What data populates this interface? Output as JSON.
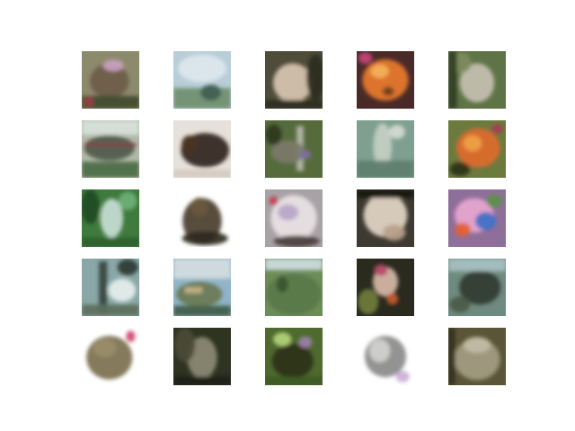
{
  "tiles": [
    {
      "bg": "#8c8a6c",
      "shapes": [
        [
          "ellipse",
          "#6c5b46",
          0.48,
          0.52,
          0.34,
          0.3
        ],
        [
          "ellipse",
          "#c9a3c0",
          0.55,
          0.25,
          0.18,
          0.1
        ],
        [
          "rect",
          "#3f4a2d",
          0.0,
          0.78,
          1.0,
          0.22
        ],
        [
          "ellipse",
          "#a33a45",
          0.12,
          0.88,
          0.08,
          0.08
        ]
      ]
    },
    {
      "bg": "#b8cdd8",
      "shapes": [
        [
          "ellipse",
          "#dde8ee",
          0.5,
          0.3,
          0.42,
          0.24
        ],
        [
          "rect",
          "#6f8f6e",
          0.0,
          0.64,
          1.0,
          0.36
        ],
        [
          "ellipse",
          "#3e5f50",
          0.65,
          0.72,
          0.18,
          0.14
        ]
      ]
    },
    {
      "bg": "#4f4c3a",
      "shapes": [
        [
          "ellipse",
          "#d8c6b0",
          0.48,
          0.55,
          0.34,
          0.34
        ],
        [
          "ellipse",
          "#2d2a20",
          0.88,
          0.45,
          0.16,
          0.4
        ],
        [
          "rect",
          "#2a2a1e",
          0.0,
          0.85,
          1.0,
          0.15
        ]
      ]
    },
    {
      "bg": "#4a2a28",
      "shapes": [
        [
          "ellipse",
          "#e87b2a",
          0.5,
          0.5,
          0.4,
          0.36
        ],
        [
          "ellipse",
          "#f3b25a",
          0.4,
          0.35,
          0.16,
          0.12
        ],
        [
          "ellipse",
          "#c8457a",
          0.15,
          0.12,
          0.12,
          0.1
        ],
        [
          "ellipse",
          "#6a3b1e",
          0.55,
          0.7,
          0.1,
          0.08
        ]
      ]
    },
    {
      "bg": "#5f7446",
      "shapes": [
        [
          "ellipse",
          "#c6c0b2",
          0.5,
          0.55,
          0.3,
          0.34
        ],
        [
          "ellipse",
          "#7d8c5b",
          0.2,
          0.2,
          0.2,
          0.18
        ],
        [
          "rect",
          "#2f3e24",
          0.0,
          0.0,
          0.15,
          1.0
        ]
      ]
    },
    {
      "bg": "#b3b9a8",
      "shapes": [
        [
          "ellipse",
          "#4f5a4a",
          0.48,
          0.48,
          0.44,
          0.22
        ],
        [
          "rect",
          "#8b3c45",
          0.05,
          0.4,
          0.9,
          0.05
        ],
        [
          "rect",
          "#d7e2da",
          0.0,
          0.0,
          1.0,
          0.25
        ],
        [
          "rect",
          "#4b6b45",
          0.0,
          0.72,
          1.0,
          0.28
        ]
      ]
    },
    {
      "bg": "#e6e1da",
      "shapes": [
        [
          "ellipse",
          "#2f241c",
          0.55,
          0.52,
          0.42,
          0.3
        ],
        [
          "ellipse",
          "#4a3324",
          0.28,
          0.42,
          0.14,
          0.16
        ],
        [
          "rect",
          "#d5cbc0",
          0.0,
          0.86,
          1.0,
          0.14
        ]
      ]
    },
    {
      "bg": "#566b3c",
      "shapes": [
        [
          "rect",
          "#b9b8ae",
          0.55,
          0.1,
          0.12,
          0.78
        ],
        [
          "ellipse",
          "#7c7a6a",
          0.4,
          0.55,
          0.3,
          0.2
        ],
        [
          "ellipse",
          "#2d3820",
          0.15,
          0.25,
          0.14,
          0.18
        ],
        [
          "ellipse",
          "#7e6fa0",
          0.7,
          0.6,
          0.1,
          0.08
        ]
      ]
    },
    {
      "bg": "#7fa090",
      "shapes": [
        [
          "ellipse",
          "#c7cfc4",
          0.45,
          0.45,
          0.16,
          0.4
        ],
        [
          "rect",
          "#5d7e6e",
          0.0,
          0.7,
          1.0,
          0.3
        ],
        [
          "ellipse",
          "#d6dccf",
          0.7,
          0.2,
          0.14,
          0.12
        ]
      ]
    },
    {
      "bg": "#6c7a3e",
      "shapes": [
        [
          "ellipse",
          "#e06a2c",
          0.52,
          0.48,
          0.38,
          0.34
        ],
        [
          "ellipse",
          "#f0a248",
          0.42,
          0.4,
          0.16,
          0.14
        ],
        [
          "ellipse",
          "#2c3119",
          0.2,
          0.85,
          0.18,
          0.12
        ],
        [
          "ellipse",
          "#a93a55",
          0.85,
          0.15,
          0.1,
          0.08
        ]
      ]
    },
    {
      "bg": "#3f7b3c",
      "shapes": [
        [
          "ellipse",
          "#c8ddd6",
          0.52,
          0.5,
          0.2,
          0.34
        ],
        [
          "ellipse",
          "#1f4b25",
          0.15,
          0.3,
          0.16,
          0.3
        ],
        [
          "ellipse",
          "#6fb07a",
          0.8,
          0.2,
          0.16,
          0.16
        ],
        [
          "rect",
          "#2b5e2a",
          0.0,
          0.84,
          1.0,
          0.16
        ]
      ]
    },
    {
      "bg": "#ffffff",
      "shapes": [
        [
          "ellipse",
          "#4a3e2b",
          0.5,
          0.55,
          0.34,
          0.4
        ],
        [
          "ellipse",
          "#6a5a3c",
          0.45,
          0.3,
          0.14,
          0.16
        ],
        [
          "ellipse",
          "#2f2a1f",
          0.55,
          0.85,
          0.4,
          0.12
        ]
      ]
    },
    {
      "bg": "#a8a2a6",
      "shapes": [
        [
          "ellipse",
          "#e9e3e5",
          0.5,
          0.5,
          0.4,
          0.4
        ],
        [
          "ellipse",
          "#b9a5c7",
          0.4,
          0.4,
          0.18,
          0.14
        ],
        [
          "ellipse",
          "#4a3e3a",
          0.55,
          0.9,
          0.4,
          0.1
        ],
        [
          "ellipse",
          "#c63e52",
          0.15,
          0.2,
          0.08,
          0.08
        ]
      ]
    },
    {
      "bg": "#3e3a31",
      "shapes": [
        [
          "ellipse",
          "#e3d6c6",
          0.5,
          0.45,
          0.38,
          0.38
        ],
        [
          "ellipse",
          "#b7a08a",
          0.65,
          0.75,
          0.2,
          0.14
        ],
        [
          "rect",
          "#18150f",
          0.0,
          0.0,
          1.0,
          0.15
        ]
      ]
    },
    {
      "bg": "#8e6f9a",
      "shapes": [
        [
          "ellipse",
          "#e8a6cf",
          0.45,
          0.45,
          0.34,
          0.3
        ],
        [
          "ellipse",
          "#3d6fc8",
          0.65,
          0.55,
          0.18,
          0.16
        ],
        [
          "ellipse",
          "#e5602f",
          0.25,
          0.7,
          0.14,
          0.12
        ],
        [
          "ellipse",
          "#5b8f4a",
          0.8,
          0.2,
          0.14,
          0.12
        ]
      ]
    },
    {
      "bg": "#8aa7a8",
      "shapes": [
        [
          "rect",
          "#33433b",
          0.3,
          0.05,
          0.14,
          0.9
        ],
        [
          "ellipse",
          "#e6efee",
          0.7,
          0.55,
          0.24,
          0.2
        ],
        [
          "ellipse",
          "#2b3a2f",
          0.8,
          0.15,
          0.18,
          0.14
        ],
        [
          "rect",
          "#5b6f5b",
          0.0,
          0.8,
          1.0,
          0.2
        ]
      ]
    },
    {
      "bg": "#90b4c8",
      "shapes": [
        [
          "rect",
          "#d5dde1",
          0.0,
          0.0,
          1.0,
          0.35
        ],
        [
          "ellipse",
          "#6a7a55",
          0.45,
          0.62,
          0.4,
          0.22
        ],
        [
          "rect",
          "#c9b48a",
          0.2,
          0.5,
          0.3,
          0.1
        ],
        [
          "rect",
          "#3f5c44",
          0.0,
          0.82,
          1.0,
          0.18
        ]
      ]
    },
    {
      "bg": "#6c8d58",
      "shapes": [
        [
          "rect",
          "#cfdde3",
          0.0,
          0.0,
          1.0,
          0.2
        ],
        [
          "ellipse",
          "#587a48",
          0.5,
          0.62,
          0.48,
          0.36
        ],
        [
          "ellipse",
          "#3a5530",
          0.3,
          0.45,
          0.1,
          0.14
        ]
      ]
    },
    {
      "bg": "#2a2a1e",
      "shapes": [
        [
          "ellipse",
          "#d8b9a6",
          0.5,
          0.4,
          0.22,
          0.26
        ],
        [
          "ellipse",
          "#b5466a",
          0.42,
          0.2,
          0.12,
          0.1
        ],
        [
          "ellipse",
          "#6f7d3a",
          0.2,
          0.75,
          0.18,
          0.22
        ],
        [
          "ellipse",
          "#c95a2a",
          0.62,
          0.7,
          0.1,
          0.1
        ]
      ]
    },
    {
      "bg": "#6f8a80",
      "shapes": [
        [
          "ellipse",
          "#2f3a31",
          0.55,
          0.5,
          0.36,
          0.3
        ],
        [
          "rect",
          "#a7c0c2",
          0.0,
          0.0,
          1.0,
          0.22
        ],
        [
          "ellipse",
          "#4a5a48",
          0.2,
          0.8,
          0.18,
          0.14
        ]
      ]
    },
    {
      "bg": "#ffffff",
      "shapes": [
        [
          "ellipse",
          "#7b6f4f",
          0.48,
          0.52,
          0.4,
          0.38
        ],
        [
          "ellipse",
          "#9a8e6a",
          0.4,
          0.35,
          0.2,
          0.16
        ],
        [
          "ellipse",
          "#d34a6f",
          0.85,
          0.15,
          0.08,
          0.1
        ]
      ]
    },
    {
      "bg": "#2e3322",
      "shapes": [
        [
          "ellipse",
          "#8c8a74",
          0.5,
          0.52,
          0.26,
          0.36
        ],
        [
          "ellipse",
          "#4a4a36",
          0.2,
          0.3,
          0.18,
          0.3
        ],
        [
          "rect",
          "#1c2015",
          0.0,
          0.85,
          1.0,
          0.15
        ]
      ]
    },
    {
      "bg": "#4e6a2e",
      "shapes": [
        [
          "ellipse",
          "#2a3219",
          0.48,
          0.58,
          0.36,
          0.3
        ],
        [
          "ellipse",
          "#b5d37a",
          0.3,
          0.2,
          0.16,
          0.12
        ],
        [
          "ellipse",
          "#9a7fa8",
          0.7,
          0.25,
          0.12,
          0.1
        ],
        [
          "rect",
          "#3d5a22",
          0.0,
          0.85,
          1.0,
          0.15
        ]
      ]
    },
    {
      "bg": "#ffffff",
      "shapes": [
        [
          "ellipse",
          "#8a8a8a",
          0.5,
          0.5,
          0.36,
          0.36
        ],
        [
          "ellipse",
          "#d2d2d0",
          0.4,
          0.4,
          0.18,
          0.2
        ],
        [
          "ellipse",
          "#c9b0d6",
          0.8,
          0.85,
          0.12,
          0.1
        ]
      ]
    },
    {
      "bg": "#5a5538",
      "shapes": [
        [
          "ellipse",
          "#a49c82",
          0.5,
          0.55,
          0.4,
          0.36
        ],
        [
          "ellipse",
          "#c2bca7",
          0.5,
          0.3,
          0.24,
          0.14
        ],
        [
          "rect",
          "#34321f",
          0.0,
          0.0,
          0.12,
          1.0
        ]
      ]
    }
  ]
}
